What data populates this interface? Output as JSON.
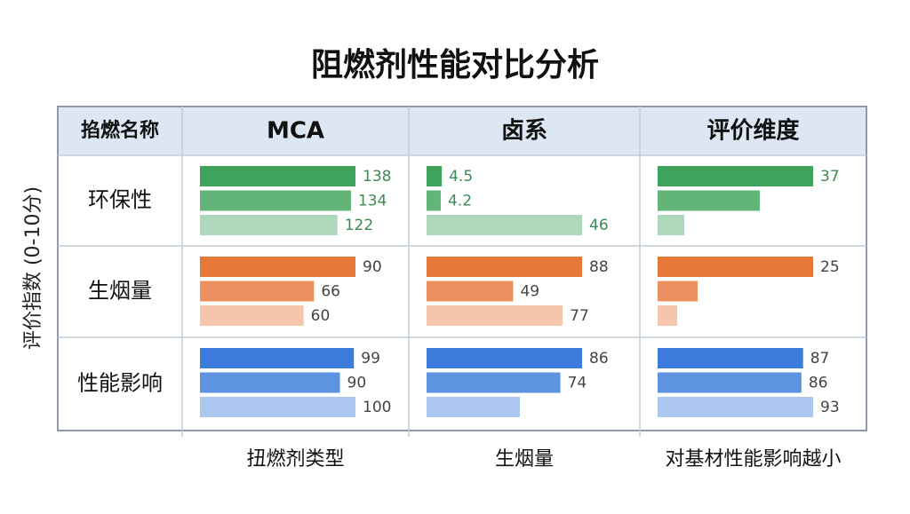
{
  "title": "阻燃剂性能对比分析",
  "y_axis_label": "评价指数 (0-10分)",
  "table": {
    "headers": [
      "掐燃名称",
      "MCA",
      "卤系",
      "评价维度"
    ],
    "rows": [
      {
        "label": "环保性",
        "values": [
          [
            138,
            134,
            122
          ],
          [
            4.5,
            4.2,
            46
          ],
          [
            37,
            null,
            null
          ]
        ]
      },
      {
        "label": "生烟量",
        "values": [
          [
            90,
            66,
            60
          ],
          [
            88,
            49,
            77
          ],
          [
            25,
            null,
            null
          ]
        ]
      },
      {
        "label": "性能影响",
        "values": [
          [
            99,
            90,
            100
          ],
          [
            86,
            74,
            null
          ],
          [
            87,
            86,
            93
          ]
        ]
      }
    ]
  },
  "x_labels": [
    "扭燃剂类型",
    "生烟量",
    "对基材性能影响越小"
  ]
}
